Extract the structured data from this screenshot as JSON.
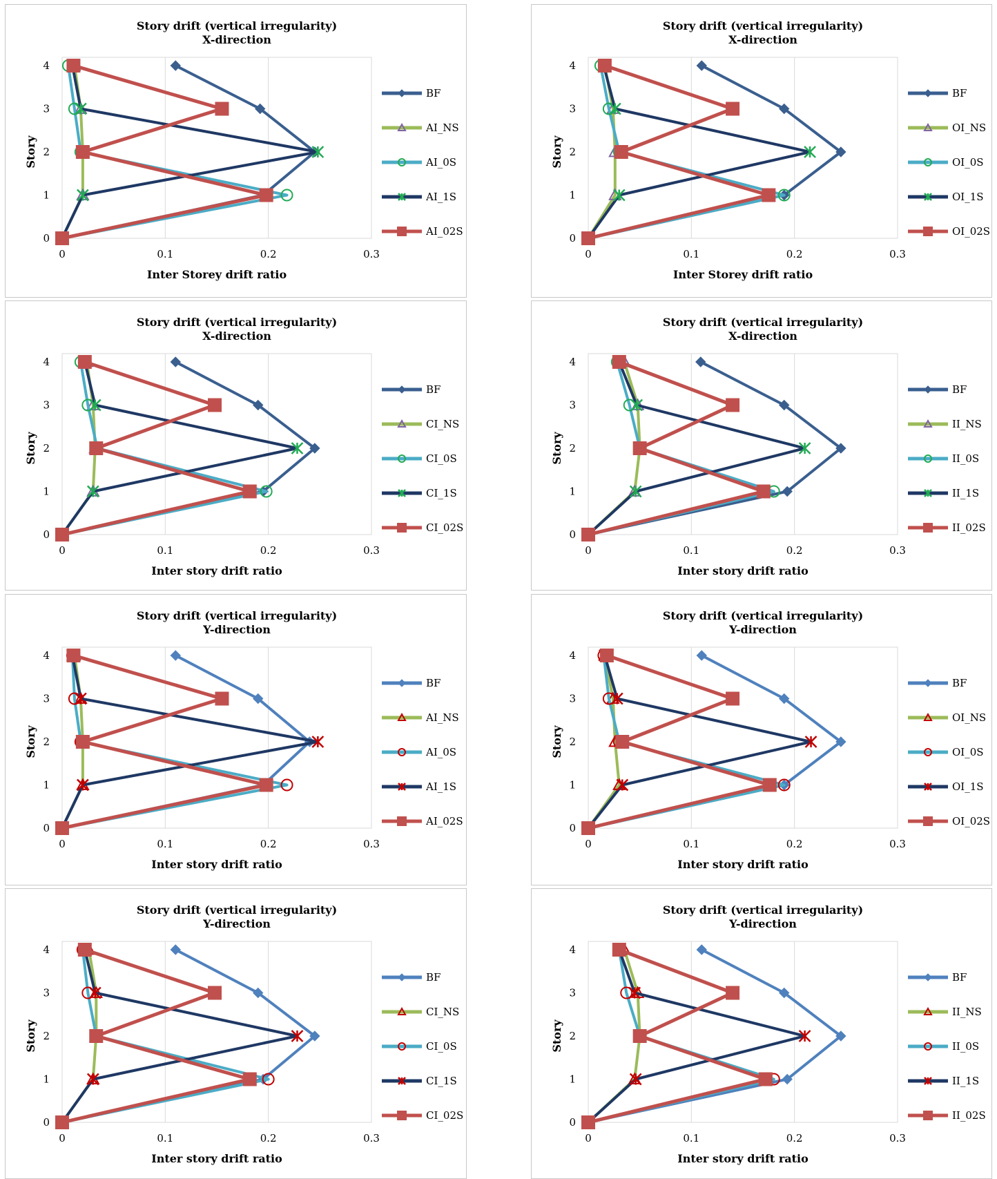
{
  "chart_data": [
    {
      "type": "line",
      "title_line1": "Story drift (vertical irregularity)",
      "title_line2": "X-direction",
      "xlabel": "Inter Storey drift ratio",
      "ylabel": "Story",
      "xlim": [
        0,
        0.3
      ],
      "ylim": [
        0,
        4
      ],
      "xticks": [
        "0",
        "0.1",
        "0.2",
        "0.3"
      ],
      "yticks": [
        "0",
        "1",
        "2",
        "3",
        "4"
      ],
      "grid": "vertical",
      "legend_position": "right",
      "series": [
        {
          "name": "BF",
          "x": [
            0,
            0.195,
            0.245,
            0.192,
            0.11
          ],
          "y": [
            0,
            1,
            2,
            3,
            4
          ],
          "color": "#3a5f8f",
          "marker": "diamond"
        },
        {
          "name": "AI_NS",
          "x": [
            0,
            0.02,
            0.02,
            0.018,
            0.012
          ],
          "y": [
            0,
            1,
            2,
            3,
            4
          ],
          "color": "#9bbb59",
          "marker": "triangle"
        },
        {
          "name": "AI_0S",
          "x": [
            0,
            0.218,
            0.018,
            0.012,
            0.006
          ],
          "y": [
            0,
            1,
            2,
            3,
            4
          ],
          "color": "#4bacc6",
          "marker": "circle"
        },
        {
          "name": "AI_1S",
          "x": [
            0,
            0.02,
            0.248,
            0.018,
            0.01
          ],
          "y": [
            0,
            1,
            2,
            3,
            4
          ],
          "color": "#1f3864",
          "marker": "star"
        },
        {
          "name": "AI_02S",
          "x": [
            0,
            0.198,
            0.02,
            0.155,
            0.011
          ],
          "y": [
            0,
            1,
            2,
            3,
            4
          ],
          "color": "#c0504d",
          "marker": "square"
        }
      ]
    },
    {
      "type": "line",
      "title_line1": "Story drift (vertical irregularity)",
      "title_line2": "X-direction",
      "xlabel": "Inter Storey drift ratio",
      "ylabel": "Story",
      "xlim": [
        0,
        0.3
      ],
      "ylim": [
        0,
        4
      ],
      "xticks": [
        "0",
        "0.1",
        "0.2",
        "0.3"
      ],
      "yticks": [
        "0",
        "1",
        "2",
        "3",
        "4"
      ],
      "grid": "vertical",
      "legend_position": "right",
      "series": [
        {
          "name": "BF",
          "x": [
            0,
            0.19,
            0.245,
            0.19,
            0.11
          ],
          "y": [
            0,
            1,
            2,
            3,
            4
          ],
          "color": "#3a5f8f",
          "marker": "diamond"
        },
        {
          "name": "OI_NS",
          "x": [
            0,
            0.026,
            0.026,
            0.024,
            0.016
          ],
          "y": [
            0,
            1,
            2,
            3,
            4
          ],
          "color": "#9bbb59",
          "marker": "triangle"
        },
        {
          "name": "OI_0S",
          "x": [
            0,
            0.19,
            0.03,
            0.02,
            0.012
          ],
          "y": [
            0,
            1,
            2,
            3,
            4
          ],
          "color": "#4bacc6",
          "marker": "circle"
        },
        {
          "name": "OI_1S",
          "x": [
            0,
            0.03,
            0.215,
            0.026,
            0.015
          ],
          "y": [
            0,
            1,
            2,
            3,
            4
          ],
          "color": "#1f3864",
          "marker": "star"
        },
        {
          "name": "OI_02S",
          "x": [
            0,
            0.175,
            0.032,
            0.14,
            0.016
          ],
          "y": [
            0,
            1,
            2,
            3,
            4
          ],
          "color": "#c0504d",
          "marker": "square"
        }
      ]
    },
    {
      "type": "line",
      "title_line1": "Story drift (vertical irregularity)",
      "title_line2": "X-direction",
      "xlabel": "Inter story drift ratio",
      "ylabel": "Story",
      "xlim": [
        0,
        0.3
      ],
      "ylim": [
        0,
        4
      ],
      "xticks": [
        "0",
        "0.1",
        "0.2",
        "0.3"
      ],
      "yticks": [
        "0",
        "1",
        "2",
        "3",
        "4"
      ],
      "grid": "vertical",
      "legend_position": "right",
      "series": [
        {
          "name": "BF",
          "x": [
            0,
            0.195,
            0.245,
            0.19,
            0.11
          ],
          "y": [
            0,
            1,
            2,
            3,
            4
          ],
          "color": "#3a5f8f",
          "marker": "diamond"
        },
        {
          "name": "CI_NS",
          "x": [
            0,
            0.03,
            0.032,
            0.03,
            0.024
          ],
          "y": [
            0,
            1,
            2,
            3,
            4
          ],
          "color": "#9bbb59",
          "marker": "triangle"
        },
        {
          "name": "CI_0S",
          "x": [
            0,
            0.198,
            0.034,
            0.025,
            0.018
          ],
          "y": [
            0,
            1,
            2,
            3,
            4
          ],
          "color": "#4bacc6",
          "marker": "circle"
        },
        {
          "name": "CI_1S",
          "x": [
            0,
            0.03,
            0.228,
            0.032,
            0.022
          ],
          "y": [
            0,
            1,
            2,
            3,
            4
          ],
          "color": "#1f3864",
          "marker": "star"
        },
        {
          "name": "CI_02S",
          "x": [
            0,
            0.182,
            0.033,
            0.148,
            0.022
          ],
          "y": [
            0,
            1,
            2,
            3,
            4
          ],
          "color": "#c0504d",
          "marker": "square"
        }
      ]
    },
    {
      "type": "line",
      "title_line1": "Story drift (vertical irregularity)",
      "title_line2": "X-direction",
      "xlabel": "Inter story drift ratio",
      "ylabel": "Story",
      "xlim": [
        0,
        0.3
      ],
      "ylim": [
        0,
        4
      ],
      "xticks": [
        "0",
        "0.1",
        "0.2",
        "0.3"
      ],
      "yticks": [
        "0",
        "1",
        "2",
        "3",
        "4"
      ],
      "grid": "vertical",
      "legend_position": "right",
      "series": [
        {
          "name": "BF",
          "x": [
            0,
            0.193,
            0.245,
            0.19,
            0.109
          ],
          "y": [
            0,
            1,
            2,
            3,
            4
          ],
          "color": "#3a5f8f",
          "marker": "diamond"
        },
        {
          "name": "II_NS",
          "x": [
            0,
            0.045,
            0.05,
            0.048,
            0.035
          ],
          "y": [
            0,
            1,
            2,
            3,
            4
          ],
          "color": "#9bbb59",
          "marker": "triangle"
        },
        {
          "name": "II_0S",
          "x": [
            0,
            0.18,
            0.05,
            0.04,
            0.028
          ],
          "y": [
            0,
            1,
            2,
            3,
            4
          ],
          "color": "#4bacc6",
          "marker": "circle"
        },
        {
          "name": "II_1S",
          "x": [
            0,
            0.046,
            0.21,
            0.047,
            0.03
          ],
          "y": [
            0,
            1,
            2,
            3,
            4
          ],
          "color": "#1f3864",
          "marker": "star"
        },
        {
          "name": "II_02S",
          "x": [
            0,
            0.17,
            0.05,
            0.14,
            0.03
          ],
          "y": [
            0,
            1,
            2,
            3,
            4
          ],
          "color": "#c0504d",
          "marker": "square"
        }
      ]
    },
    {
      "type": "line",
      "title_line1": "Story drift (vertical irregularity)",
      "title_line2": "Y-direction",
      "xlabel": "Inter story drift ratio",
      "ylabel": "Story",
      "xlim": [
        0,
        0.3
      ],
      "ylim": [
        0,
        4
      ],
      "xticks": [
        "0",
        "0.1",
        "0.2",
        "0.3"
      ],
      "yticks": [
        "0",
        "1",
        "2",
        "3",
        "4"
      ],
      "grid": "vertical",
      "legend_position": "right",
      "series": [
        {
          "name": "BF",
          "x": [
            0,
            0.195,
            0.24,
            0.19,
            0.11
          ],
          "y": [
            0,
            1,
            2,
            3,
            4
          ],
          "color": "#4f81bd",
          "marker": "diamond"
        },
        {
          "name": "AI_NS",
          "x": [
            0,
            0.02,
            0.02,
            0.018,
            0.012
          ],
          "y": [
            0,
            1,
            2,
            3,
            4
          ],
          "color": "#9bbb59",
          "marker": "triangle"
        },
        {
          "name": "AI_0S",
          "x": [
            0,
            0.218,
            0.018,
            0.012,
            0.01
          ],
          "y": [
            0,
            1,
            2,
            3,
            4
          ],
          "color": "#4bacc6",
          "marker": "circle"
        },
        {
          "name": "AI_1S",
          "x": [
            0,
            0.02,
            0.248,
            0.018,
            0.01
          ],
          "y": [
            0,
            1,
            2,
            3,
            4
          ],
          "color": "#1f3864",
          "marker": "xstar"
        },
        {
          "name": "AI_02S",
          "x": [
            0,
            0.198,
            0.02,
            0.155,
            0.011
          ],
          "y": [
            0,
            1,
            2,
            3,
            4
          ],
          "color": "#c0504d",
          "marker": "square"
        }
      ]
    },
    {
      "type": "line",
      "title_line1": "Story drift (vertical irregularity)",
      "title_line2": "Y-direction",
      "xlabel": "Inter story drift ratio",
      "ylabel": "Story",
      "xlim": [
        0,
        0.3
      ],
      "ylim": [
        0,
        4
      ],
      "xticks": [
        "0",
        "0.1",
        "0.2",
        "0.3"
      ],
      "yticks": [
        "0",
        "1",
        "2",
        "3",
        "4"
      ],
      "grid": "vertical",
      "legend_position": "right",
      "series": [
        {
          "name": "BF",
          "x": [
            0,
            0.19,
            0.245,
            0.19,
            0.11
          ],
          "y": [
            0,
            1,
            2,
            3,
            4
          ],
          "color": "#4f81bd",
          "marker": "diamond"
        },
        {
          "name": "OI_NS",
          "x": [
            0,
            0.03,
            0.026,
            0.024,
            0.016
          ],
          "y": [
            0,
            1,
            2,
            3,
            4
          ],
          "color": "#9bbb59",
          "marker": "triangle"
        },
        {
          "name": "OI_0S",
          "x": [
            0,
            0.19,
            0.03,
            0.02,
            0.015
          ],
          "y": [
            0,
            1,
            2,
            3,
            4
          ],
          "color": "#4bacc6",
          "marker": "circle"
        },
        {
          "name": "OI_1S",
          "x": [
            0,
            0.033,
            0.216,
            0.028,
            0.016
          ],
          "y": [
            0,
            1,
            2,
            3,
            4
          ],
          "color": "#1f3864",
          "marker": "xstar"
        },
        {
          "name": "OI_02S",
          "x": [
            0,
            0.176,
            0.033,
            0.14,
            0.018
          ],
          "y": [
            0,
            1,
            2,
            3,
            4
          ],
          "color": "#c0504d",
          "marker": "square"
        }
      ]
    },
    {
      "type": "line",
      "title_line1": "Story drift (vertical irregularity)",
      "title_line2": "Y-direction",
      "xlabel": "Inter story drift ratio",
      "ylabel": "Story",
      "xlim": [
        0,
        0.3
      ],
      "ylim": [
        0,
        4
      ],
      "xticks": [
        "0",
        "0.1",
        "0.2",
        "0.3"
      ],
      "yticks": [
        "0",
        "1",
        "2",
        "3",
        "4"
      ],
      "grid": "vertical",
      "legend_position": "right",
      "series": [
        {
          "name": "BF",
          "x": [
            0,
            0.195,
            0.245,
            0.19,
            0.11
          ],
          "y": [
            0,
            1,
            2,
            3,
            4
          ],
          "color": "#4f81bd",
          "marker": "diamond"
        },
        {
          "name": "CI_NS",
          "x": [
            0,
            0.03,
            0.033,
            0.033,
            0.026
          ],
          "y": [
            0,
            1,
            2,
            3,
            4
          ],
          "color": "#9bbb59",
          "marker": "triangle"
        },
        {
          "name": "CI_0S",
          "x": [
            0,
            0.2,
            0.033,
            0.025,
            0.02
          ],
          "y": [
            0,
            1,
            2,
            3,
            4
          ],
          "color": "#4bacc6",
          "marker": "circle"
        },
        {
          "name": "CI_1S",
          "x": [
            0,
            0.03,
            0.228,
            0.032,
            0.022
          ],
          "y": [
            0,
            1,
            2,
            3,
            4
          ],
          "color": "#1f3864",
          "marker": "xstar"
        },
        {
          "name": "CI_02S",
          "x": [
            0,
            0.182,
            0.033,
            0.148,
            0.022
          ],
          "y": [
            0,
            1,
            2,
            3,
            4
          ],
          "color": "#c0504d",
          "marker": "square"
        }
      ]
    },
    {
      "type": "line",
      "title_line1": "Story drift (vertical irregularity)",
      "title_line2": "Y-direction",
      "xlabel": "Inter story drift ratio",
      "ylabel": "Story",
      "xlim": [
        0,
        0.3
      ],
      "ylim": [
        0,
        4
      ],
      "xticks": [
        "0",
        "0.1",
        "0.2",
        "0.3"
      ],
      "yticks": [
        "0",
        "1",
        "2",
        "3",
        "4"
      ],
      "grid": "vertical",
      "legend_position": "right",
      "series": [
        {
          "name": "BF",
          "x": [
            0,
            0.193,
            0.245,
            0.19,
            0.11
          ],
          "y": [
            0,
            1,
            2,
            3,
            4
          ],
          "color": "#4f81bd",
          "marker": "diamond"
        },
        {
          "name": "II_NS",
          "x": [
            0,
            0.045,
            0.05,
            0.048,
            0.035
          ],
          "y": [
            0,
            1,
            2,
            3,
            4
          ],
          "color": "#9bbb59",
          "marker": "triangle"
        },
        {
          "name": "II_0S",
          "x": [
            0,
            0.18,
            0.05,
            0.037,
            0.03
          ],
          "y": [
            0,
            1,
            2,
            3,
            4
          ],
          "color": "#4bacc6",
          "marker": "circle"
        },
        {
          "name": "II_1S",
          "x": [
            0,
            0.046,
            0.21,
            0.045,
            0.03
          ],
          "y": [
            0,
            1,
            2,
            3,
            4
          ],
          "color": "#1f3864",
          "marker": "xstar"
        },
        {
          "name": "II_02S",
          "x": [
            0,
            0.172,
            0.05,
            0.14,
            0.03
          ],
          "y": [
            0,
            1,
            2,
            3,
            4
          ],
          "color": "#c0504d",
          "marker": "square"
        }
      ]
    }
  ]
}
